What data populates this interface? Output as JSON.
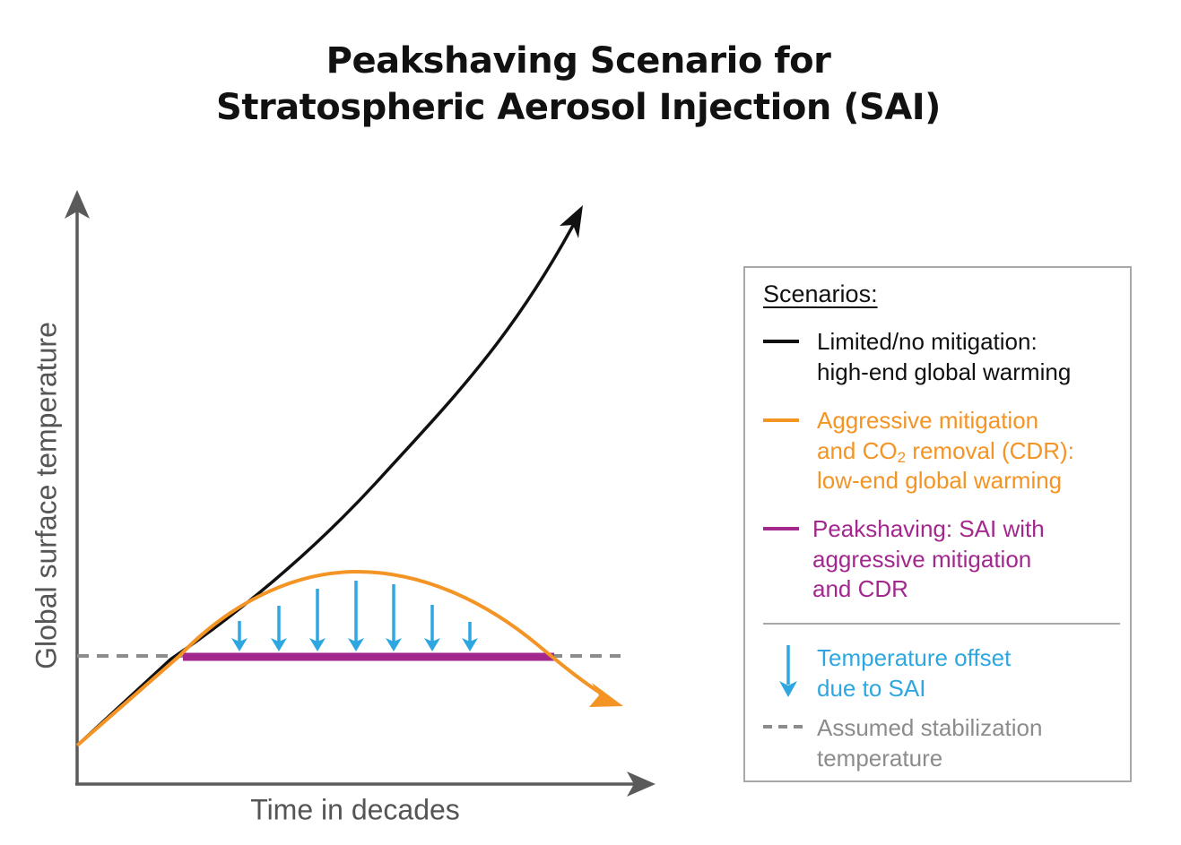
{
  "title": {
    "line1": "Peakshaving Scenario for",
    "line2": "Stratospheric Aerosol Injection (SAI)"
  },
  "axes": {
    "ylabel": "Global surface temperature",
    "xlabel": "Time in decades"
  },
  "legend": {
    "title": "Scenarios:",
    "items": [
      {
        "lines": [
          "Limited/no mitigation:",
          "high-end global warming"
        ],
        "color": "#111111"
      },
      {
        "lines": [
          "Aggressive mitigation",
          "and CO",
          "2",
          " removal (CDR):",
          "low-end global warming"
        ],
        "color": "#f39425"
      },
      {
        "lines": [
          "Peakshaving: SAI with",
          "aggressive mitigation",
          "and CDR"
        ],
        "color": "#a3288e"
      },
      {
        "lines": [
          "Temperature offset",
          "due to SAI"
        ],
        "color": "#2ea7e0"
      },
      {
        "lines": [
          "Assumed stabilization",
          "temperature"
        ],
        "color": "#8c8c8c"
      }
    ]
  },
  "colors": {
    "axis": "#5a5a5a",
    "no_mitigation": "#111111",
    "aggressive": "#f39425",
    "peakshaving": "#a3288e",
    "offset_arrow": "#2ea7e0",
    "stabilization": "#8c8c8c"
  }
}
